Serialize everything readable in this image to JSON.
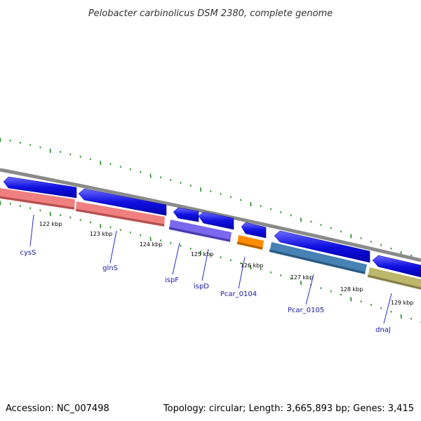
{
  "title": "Pelobacter carbinolicus DSM 2380, complete genome",
  "footer": {
    "accession": "Accession: NC_007498",
    "topology": "Topology: circular; Length: 3,665,893 bp; Genes: 3,415"
  },
  "scale_labels": [
    "122 kbp",
    "123 kbp",
    "124 kbp",
    "125 kbp",
    "126 kbp",
    "127 kbp",
    "128 kbp",
    "129 kbp"
  ],
  "gene_labels": [
    "cysS",
    "glnS",
    "ispF",
    "ispD",
    "Pcar_0104",
    "Pcar_0105",
    "dnaJ"
  ],
  "colors": {
    "backbone": "#8a8a8a",
    "strand_arrows": "#1010e0",
    "ticks": "#228b22",
    "label_text": "#1a1aa6",
    "label_lines": "#2a2ad0",
    "feature_cysS": "#f08080",
    "feature_glnS": "#f08080",
    "feature_ispF": "#7b68ee",
    "feature_ispD": "#7b68ee",
    "feature_Pcar_0104": "#ff8c00",
    "feature_Pcar_0105": "#4682b4",
    "feature_dnaJ": "#bdb76b"
  }
}
